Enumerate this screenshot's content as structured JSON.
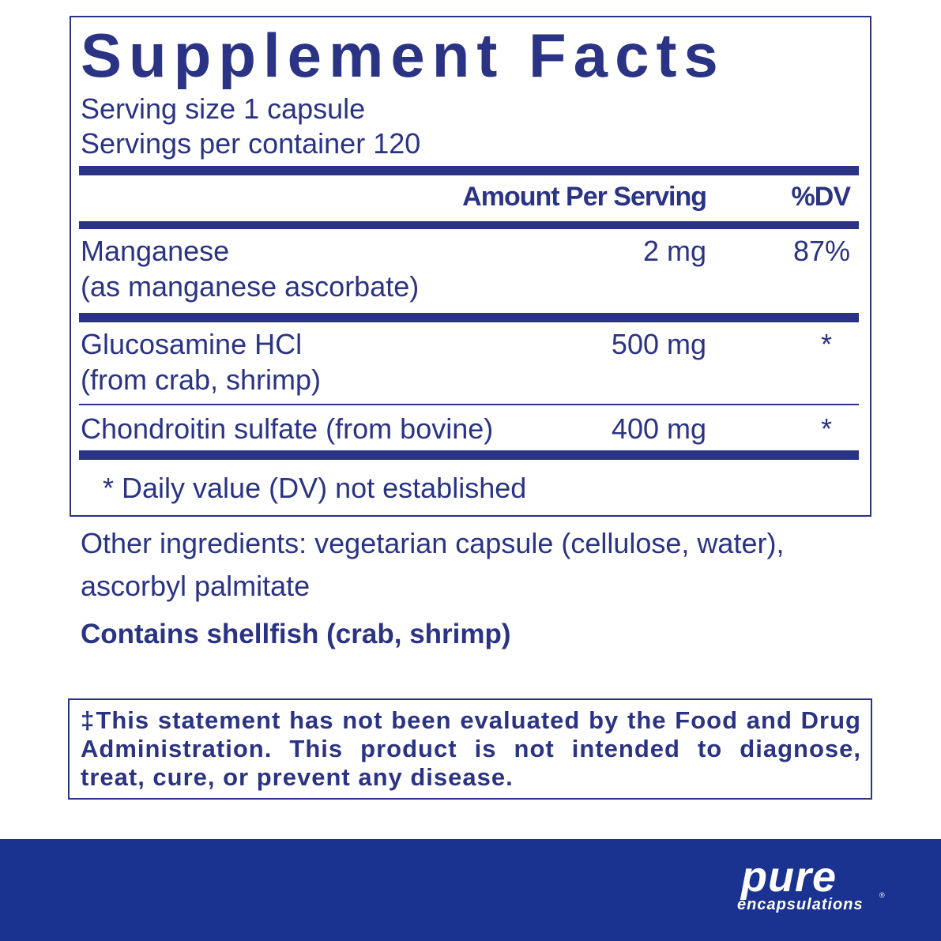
{
  "title": "Supplement Facts",
  "serving_size": "Serving size  1 capsule",
  "servings_per_container": "Servings per container  120",
  "header": {
    "amount": "Amount Per Serving",
    "dv": "%DV"
  },
  "rows": [
    {
      "name": "Manganese",
      "sub": "(as manganese ascorbate)",
      "amount": "2 mg",
      "dv": "87%"
    },
    {
      "name": "Glucosamine HCl",
      "sub": "(from crab, shrimp)",
      "amount": "500 mg",
      "dv": "*"
    },
    {
      "name": "Chondroitin sulfate (from bovine)",
      "amount": "400 mg",
      "dv": "*"
    }
  ],
  "footnote": "* Daily value (DV) not established",
  "other_ingredients": {
    "line1": "Other ingredients: vegetarian capsule (cellulose, water),",
    "line2": "ascorbyl palmitate"
  },
  "allergen": "Contains shellfish (crab, shrimp)",
  "disclaimer": "‡This statement has not been evaluated by the Food and Drug Administration. This product is not intended to diagnose, treat, cure, or prevent any disease.",
  "brand": {
    "name": "pure",
    "sub": "encapsulations",
    "mark": "®"
  },
  "colors": {
    "ink": "#2a3384",
    "band": "#1b3390"
  }
}
